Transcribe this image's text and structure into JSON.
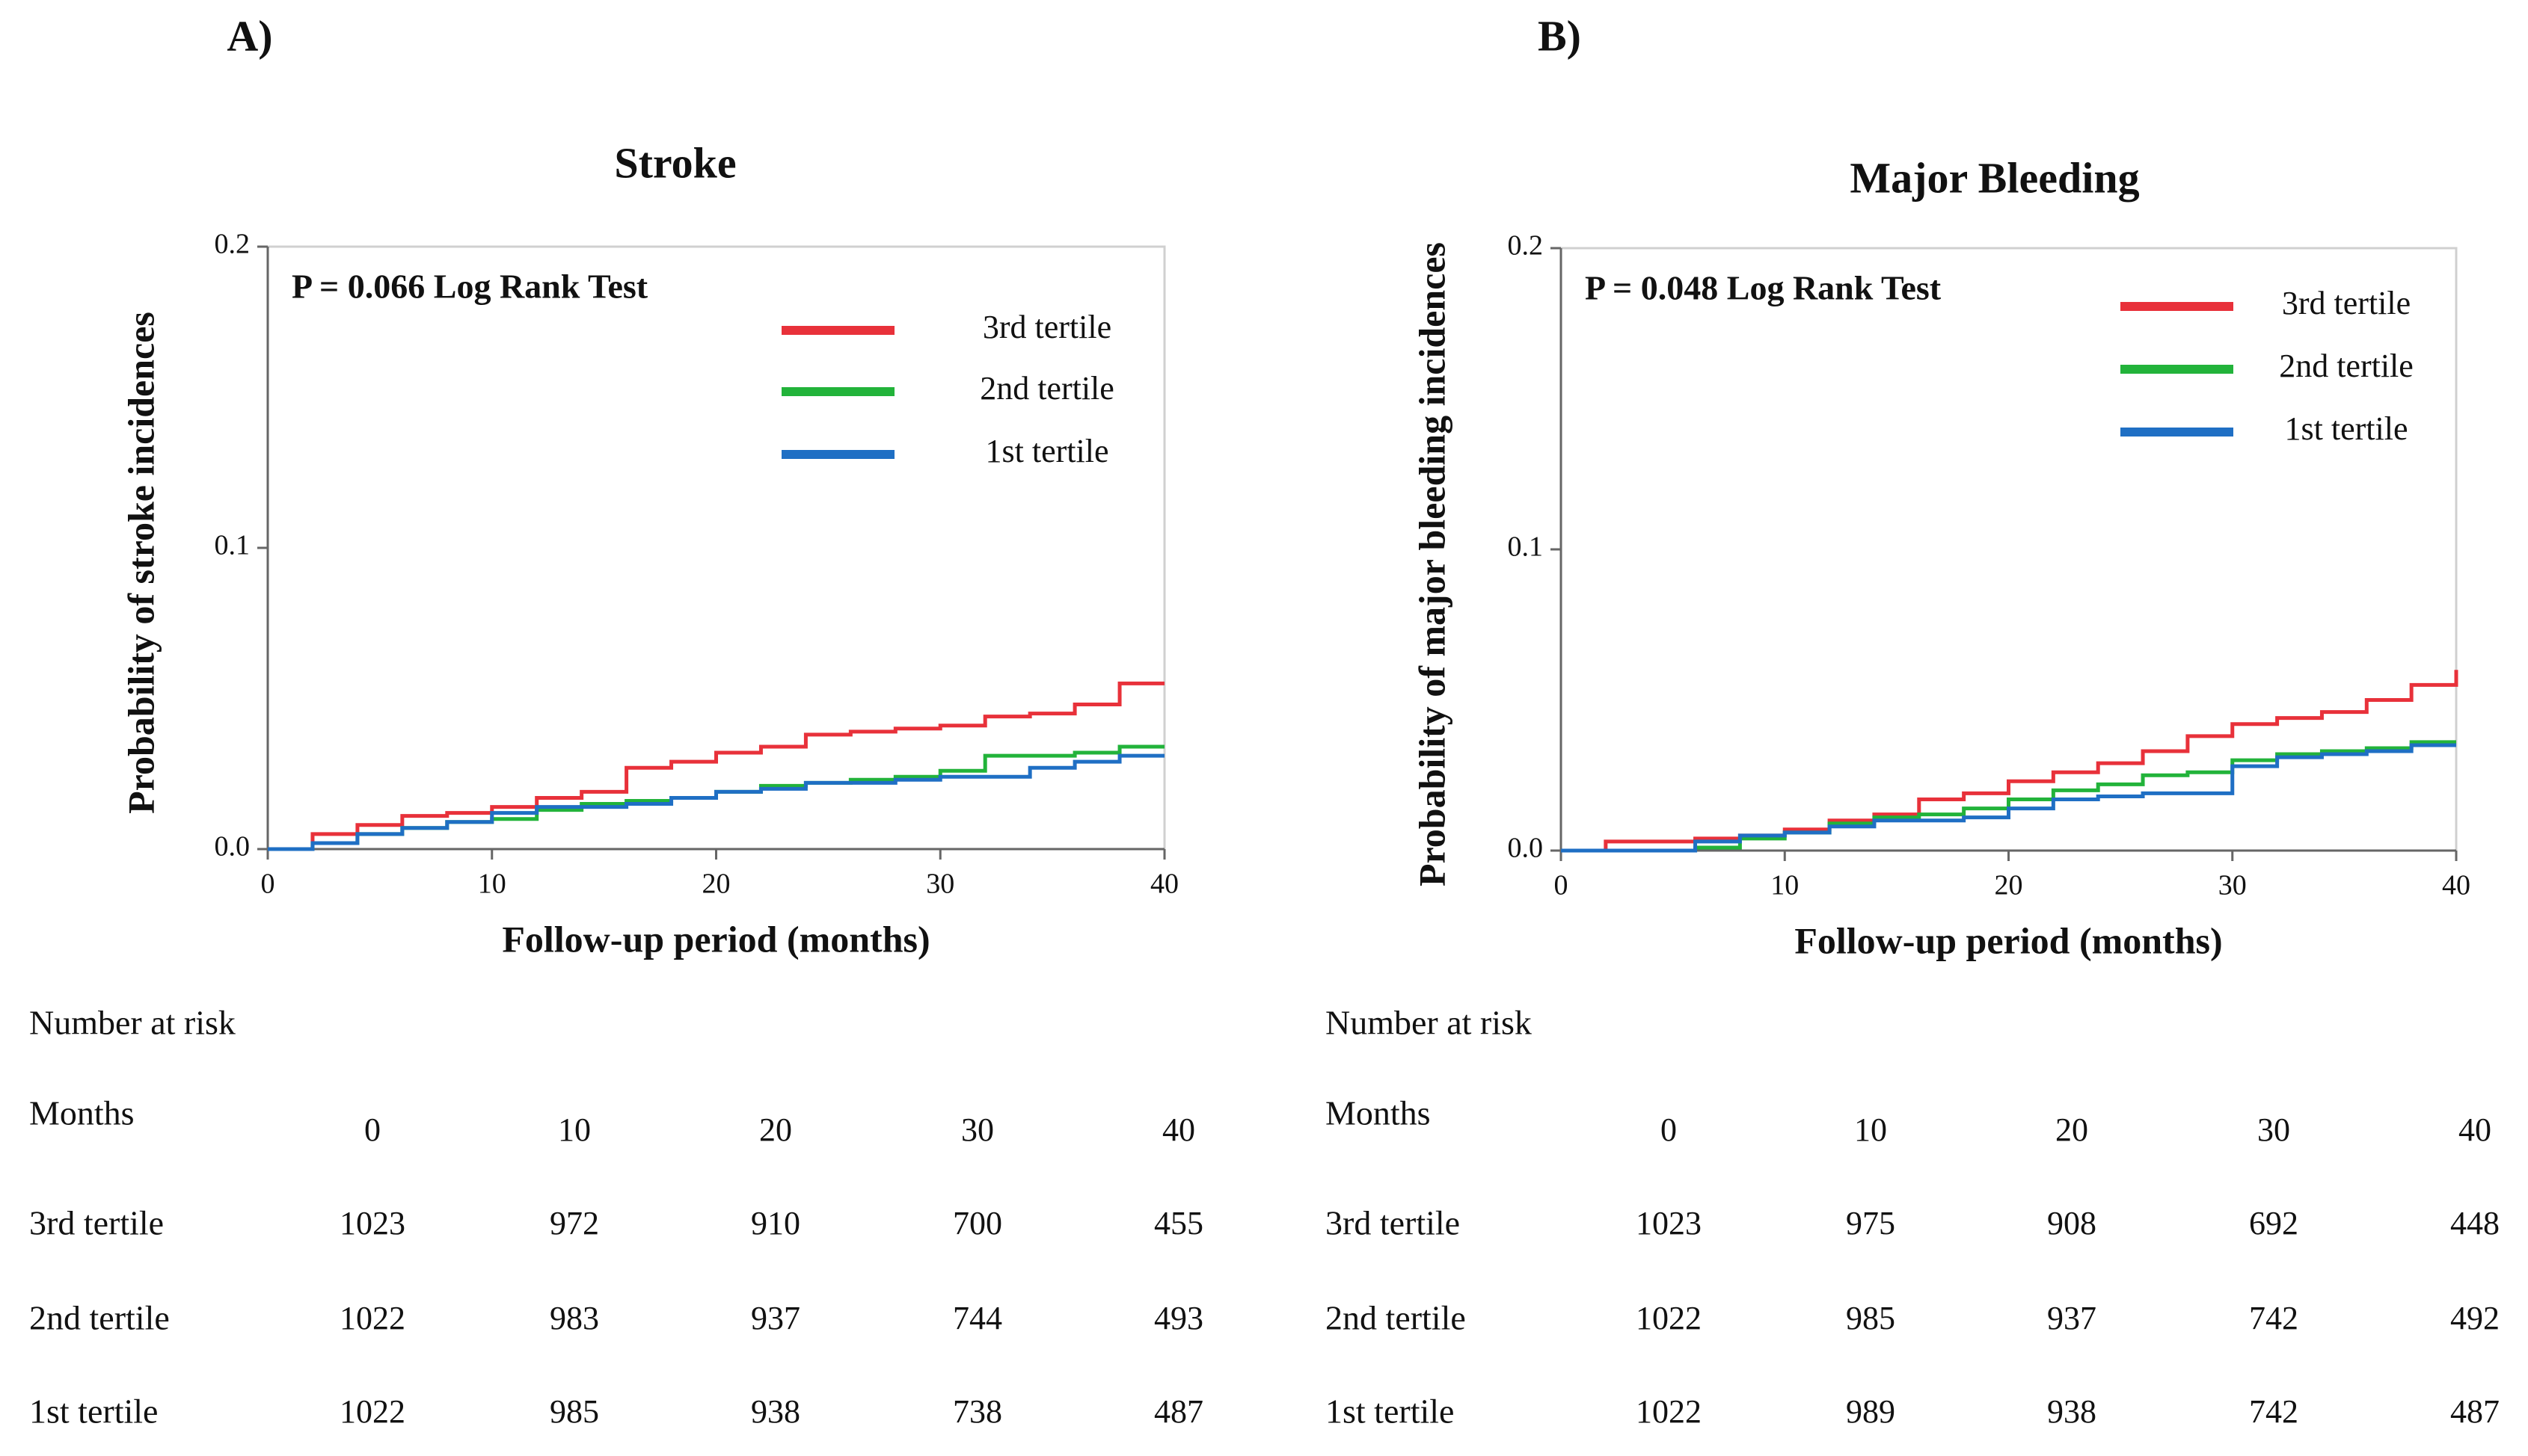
{
  "chart_data": [
    {
      "type": "step",
      "panel": "A)",
      "title": "Stroke",
      "annotation": "P = 0.066  Log Rank Test",
      "xlabel": "Follow-up  period  (months)",
      "ylabel": "Probability  of stroke incidences",
      "x": [
        0,
        2,
        4,
        6,
        8,
        10,
        12,
        14,
        16,
        18,
        20,
        22,
        24,
        26,
        28,
        30,
        32,
        34,
        36,
        38,
        40
      ],
      "series": [
        {
          "name": "3rd tertile",
          "color": "#e8313a",
          "values": [
            0,
            0.005,
            0.008,
            0.011,
            0.012,
            0.014,
            0.017,
            0.019,
            0.027,
            0.029,
            0.032,
            0.034,
            0.038,
            0.039,
            0.04,
            0.041,
            0.044,
            0.045,
            0.048,
            0.055,
            0.055
          ]
        },
        {
          "name": "2nd tertile",
          "color": "#22b33a",
          "values": [
            0,
            0.002,
            0.005,
            0.007,
            0.009,
            0.01,
            0.013,
            0.015,
            0.016,
            0.017,
            0.019,
            0.021,
            0.022,
            0.023,
            0.024,
            0.026,
            0.031,
            0.031,
            0.032,
            0.034,
            0.034
          ]
        },
        {
          "name": "1st tertile",
          "color": "#1f6fc4",
          "values": [
            0,
            0.002,
            0.005,
            0.007,
            0.009,
            0.012,
            0.014,
            0.014,
            0.015,
            0.017,
            0.019,
            0.02,
            0.022,
            0.022,
            0.023,
            0.024,
            0.024,
            0.027,
            0.029,
            0.031,
            0.031
          ]
        }
      ],
      "xlim": [
        0,
        40
      ],
      "xticks": [
        0,
        10,
        20,
        30,
        40
      ],
      "ylim": [
        0,
        0.2
      ],
      "yticks": [
        {
          "value": 0,
          "label": "0.0"
        },
        0.1,
        0.2
      ],
      "grid": false,
      "legend": "upper right",
      "risk_table": {
        "title": "Number at risk",
        "months_label": "Months",
        "months": [
          0,
          10,
          20,
          30,
          40
        ],
        "rows": [
          {
            "name": "3rd tertile",
            "values": [
              1023,
              972,
              910,
              700,
              455
            ]
          },
          {
            "name": "2nd tertile",
            "values": [
              1022,
              983,
              937,
              744,
              493
            ]
          },
          {
            "name": "1st tertile",
            "values": [
              1022,
              985,
              938,
              738,
              487
            ]
          }
        ]
      }
    },
    {
      "type": "step",
      "panel": "B)",
      "title": "Major Bleeding",
      "annotation": "P = 0.048  Log Rank Test",
      "xlabel": "Follow-up  period  (months)",
      "ylabel": "Probability  of major  bleeding  incidences",
      "x": [
        0,
        2,
        4,
        6,
        8,
        10,
        12,
        14,
        16,
        18,
        20,
        22,
        24,
        26,
        28,
        30,
        32,
        34,
        36,
        38,
        40
      ],
      "series": [
        {
          "name": "3rd tertile",
          "color": "#e8313a",
          "values": [
            0,
            0.003,
            0.003,
            0.004,
            0.005,
            0.007,
            0.01,
            0.012,
            0.017,
            0.019,
            0.023,
            0.026,
            0.029,
            0.033,
            0.038,
            0.042,
            0.044,
            0.046,
            0.05,
            0.055,
            0.06
          ]
        },
        {
          "name": "2nd tertile",
          "color": "#22b33a",
          "values": [
            0,
            0,
            0,
            0.001,
            0.004,
            0.006,
            0.009,
            0.011,
            0.012,
            0.014,
            0.017,
            0.02,
            0.022,
            0.025,
            0.026,
            0.03,
            0.032,
            0.033,
            0.034,
            0.036,
            0.036
          ]
        },
        {
          "name": "1st tertile",
          "color": "#1f6fc4",
          "values": [
            0,
            0,
            0,
            0.003,
            0.005,
            0.006,
            0.008,
            0.01,
            0.01,
            0.011,
            0.014,
            0.017,
            0.018,
            0.019,
            0.019,
            0.028,
            0.031,
            0.032,
            0.033,
            0.035,
            0.035
          ]
        }
      ],
      "xlim": [
        0,
        40
      ],
      "xticks": [
        0,
        10,
        20,
        30,
        40
      ],
      "ylim": [
        0,
        0.2
      ],
      "yticks": [
        {
          "value": 0,
          "label": "0.0"
        },
        0.1,
        0.2
      ],
      "grid": false,
      "legend": "upper right",
      "risk_table": {
        "title": "Number at risk",
        "months_label": "Months",
        "months": [
          0,
          10,
          20,
          30,
          40
        ],
        "rows": [
          {
            "name": "3rd tertile",
            "values": [
              1023,
              975,
              908,
              692,
              448
            ]
          },
          {
            "name": "2nd tertile",
            "values": [
              1022,
              985,
              937,
              742,
              492
            ]
          },
          {
            "name": "1st tertile",
            "values": [
              1022,
              989,
              938,
              742,
              487
            ]
          }
        ]
      }
    }
  ]
}
